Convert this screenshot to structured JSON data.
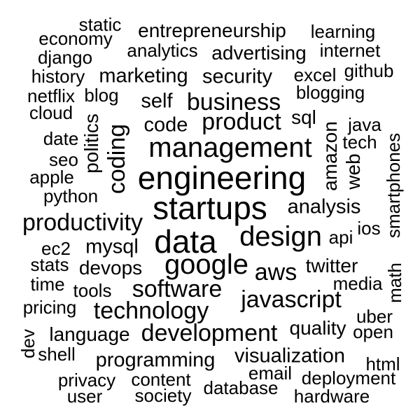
{
  "style": {
    "background": "#ffffff",
    "text_color": "#000000"
  },
  "words": [
    "static",
    "economy",
    "entrepreneurship",
    "learning",
    "django",
    "analytics",
    "advertising",
    "internet",
    "history",
    "marketing",
    "security",
    "excel",
    "github",
    "netflix",
    "blog",
    "blogging",
    "cloud",
    "self",
    "business",
    "sql",
    "java",
    "politics",
    "coding",
    "code",
    "product",
    "date",
    "amazon",
    "tech",
    "management",
    "seo",
    "web",
    "smartphones",
    "apple",
    "engineering",
    "python",
    "startups",
    "analysis",
    "productivity",
    "ios",
    "data",
    "design",
    "api",
    "ec2",
    "mysql",
    "stats",
    "devops",
    "google",
    "aws",
    "twitter",
    "time",
    "media",
    "math",
    "tools",
    "software",
    "pricing",
    "javascript",
    "technology",
    "uber",
    "language",
    "development",
    "quality",
    "open",
    "dev",
    "shell",
    "visualization",
    "programming",
    "html",
    "email",
    "privacy",
    "content",
    "deployment",
    "database",
    "user",
    "society",
    "hardware"
  ]
}
